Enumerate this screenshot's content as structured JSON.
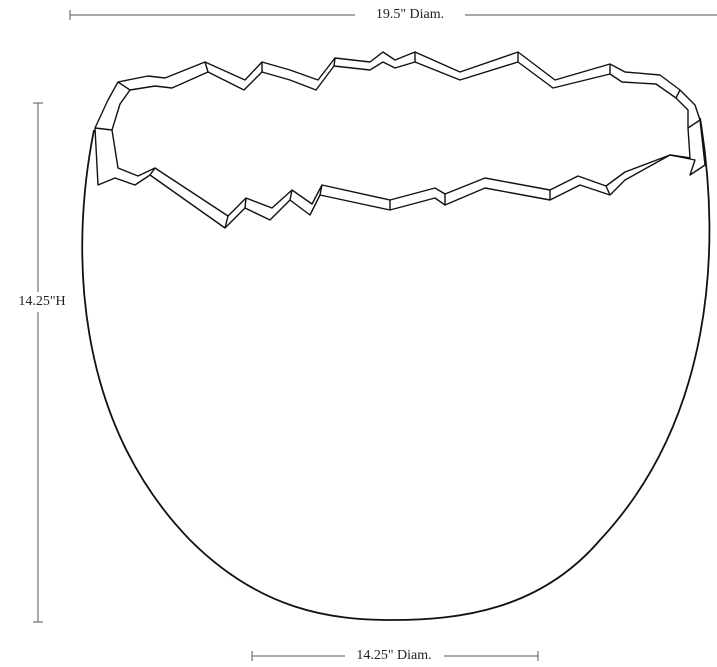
{
  "dimensions": {
    "top_diameter": "19.5\" Diam.",
    "height": "14.25\"H",
    "base_diameter": "14.25\" Diam."
  }
}
